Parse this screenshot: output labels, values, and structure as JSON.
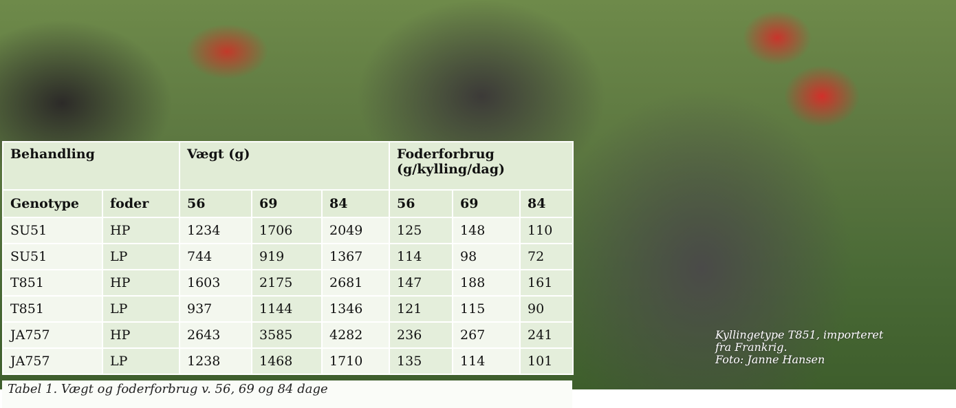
{
  "table": {
    "group_headers": [
      "Behandling",
      "Vægt (g)",
      "Foderforbrug (g/kylling/dag)"
    ],
    "columns": [
      "Genotype",
      "foder",
      "56",
      "69",
      "84",
      "56",
      "69",
      "84"
    ],
    "rows": [
      [
        "SU51",
        "HP",
        1234,
        1706,
        2049,
        125,
        148,
        110
      ],
      [
        "SU51",
        "LP",
        744,
        919,
        1367,
        114,
        98,
        72
      ],
      [
        "T851",
        "HP",
        1603,
        2175,
        2681,
        147,
        188,
        161
      ],
      [
        "T851",
        "LP",
        937,
        1144,
        1346,
        121,
        115,
        90
      ],
      [
        "JA757",
        "HP",
        2643,
        3585,
        4282,
        236,
        267,
        241
      ],
      [
        "JA757",
        "LP",
        1238,
        1468,
        1710,
        135,
        114,
        101
      ]
    ],
    "caption": "Tabel 1. Vægt og foderforbrug v. 56, 69 og 84 dage"
  },
  "photo_caption": [
    "Kyllingetype T851, importeret",
    "fra Frankrig.",
    "Foto: Janne Hansen"
  ]
}
